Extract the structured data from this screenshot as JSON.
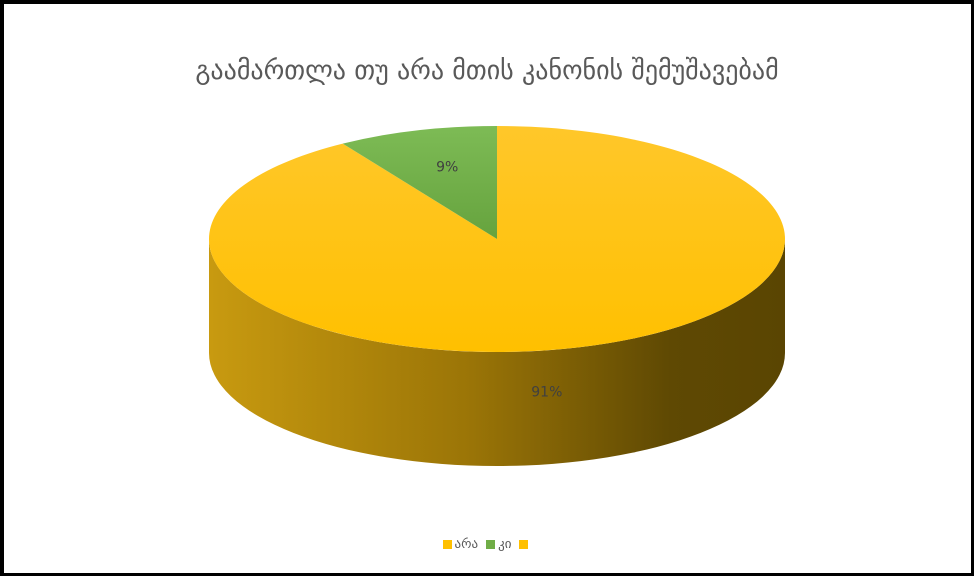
{
  "chart_data": {
    "type": "pie",
    "title": "გაამართლა თუ არა მთის კანონის შემუშავებამ",
    "slices": [
      {
        "label": "არა",
        "value": 91,
        "data_label": "91%",
        "color": "#FFC000"
      },
      {
        "label": "კი",
        "value": 9,
        "data_label": "9%",
        "color": "#70AD47"
      }
    ],
    "legend": {
      "position": "bottom",
      "entries": [
        {
          "label": "არა",
          "color": "#FFC000"
        },
        {
          "label": "კი",
          "color": "#70AD47"
        },
        {
          "label": "",
          "color": "#FFC000"
        }
      ]
    },
    "style": "3d-pie",
    "start_angle_deg": 0
  }
}
